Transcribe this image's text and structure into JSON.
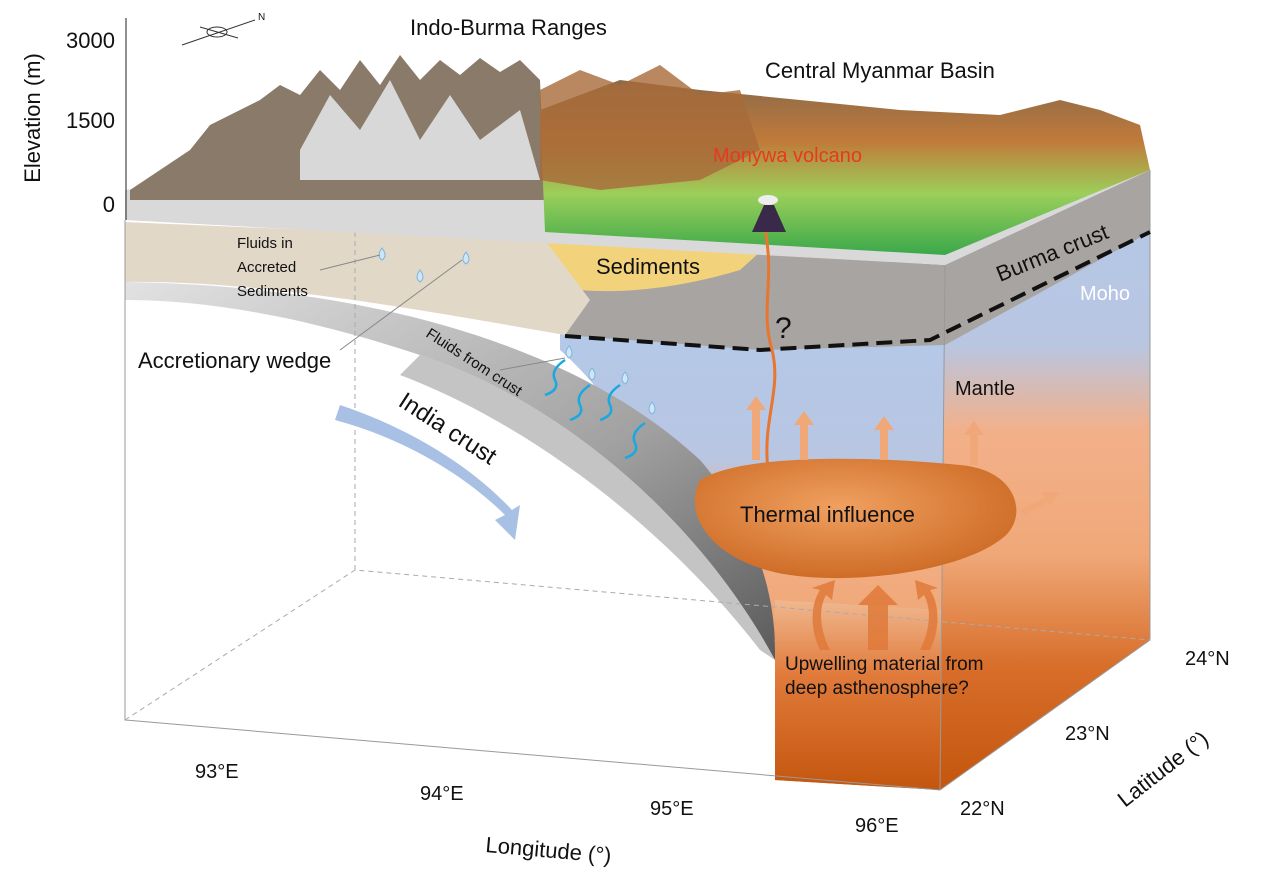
{
  "elevation_axis": {
    "label": "Elevation (m)",
    "ticks": [
      "3000",
      "1500",
      "0"
    ]
  },
  "north_arrow": {
    "label": "N",
    "icon": "north-arrow-icon"
  },
  "regions": {
    "indo_burma": "Indo-Burma Ranges",
    "central_myanmar": "Central Myanmar Basin",
    "volcano": "Monywa volcano"
  },
  "labels": {
    "fluids_accreted": [
      "Fluids in",
      "Accreted",
      "Sediments"
    ],
    "accretionary_wedge": "Accretionary wedge",
    "fluids_crust": "Fluids from crust",
    "india_crust": "India crust",
    "sediments": "Sediments",
    "burma_crust": "Burma crust",
    "moho": "Moho",
    "question": "?",
    "mantle": "Mantle",
    "thermal": "Thermal influence",
    "upwelling": [
      "Upwelling material from",
      "deep asthenosphere?"
    ]
  },
  "longitude_axis": {
    "label": "Longitude (°)",
    "ticks": [
      "93°E",
      "94°E",
      "95°E",
      "96°E"
    ]
  },
  "latitude_axis": {
    "label": "Latitude (°)",
    "ticks": [
      "22°N",
      "23°N",
      "24°N"
    ]
  },
  "colors": {
    "mantle_blue": "#b4c8e8",
    "asthenosphere_orange": "#c85a14",
    "crust_gray": "#a8a4a2",
    "sediment_yellow": "#f2d27a",
    "volcano_red": "#e8391e",
    "fluid_blue": "#1aa8e0",
    "moho_white": "#ffffff"
  }
}
